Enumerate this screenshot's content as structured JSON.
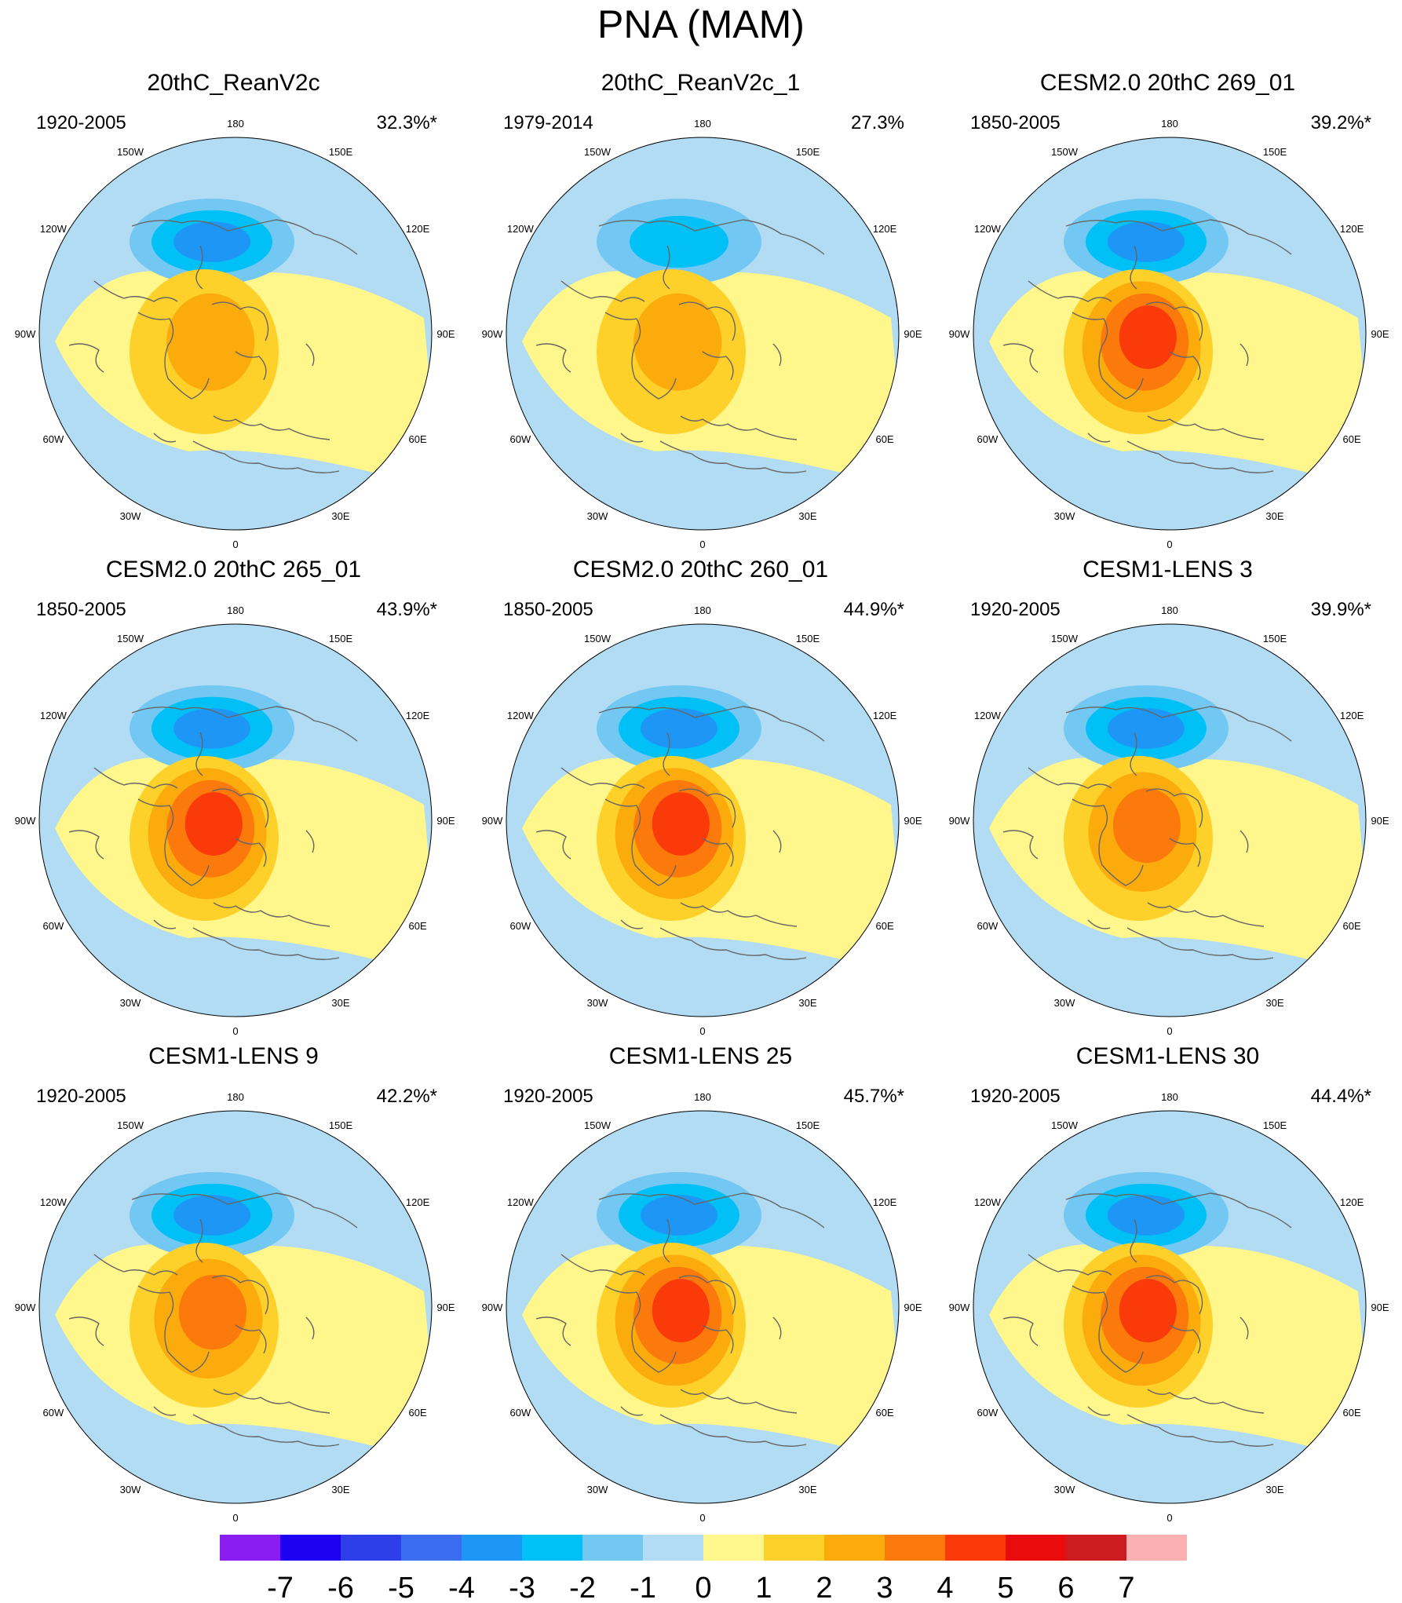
{
  "title": "PNA (MAM)",
  "chart_data": {
    "type": "map-panels",
    "title": "PNA (MAM)",
    "projection": "north-polar-stereographic",
    "lon_labels": [
      "180",
      "150E",
      "120E",
      "90E",
      "60E",
      "30E",
      "0",
      "30W",
      "60W",
      "90W",
      "120W",
      "150W"
    ],
    "panels": [
      {
        "name": "20thC_ReanV2c",
        "period": "1920-2005",
        "variance": "32.3%*",
        "min_level": -4,
        "max_level": 2
      },
      {
        "name": "20thC_ReanV2c_1",
        "period": "1979-2014",
        "variance": "27.3%",
        "min_level": -3,
        "max_level": 2
      },
      {
        "name": "CESM2.0 20thC 269_01",
        "period": "1850-2005",
        "variance": "39.2%*",
        "min_level": -4,
        "max_level": 4
      },
      {
        "name": "CESM2.0 20thC 265_01",
        "period": "1850-2005",
        "variance": "43.9%*",
        "min_level": -4,
        "max_level": 4
      },
      {
        "name": "CESM2.0 20thC 260_01",
        "period": "1850-2005",
        "variance": "44.9%*",
        "min_level": -4,
        "max_level": 4
      },
      {
        "name": "CESM1-LENS 3",
        "period": "1920-2005",
        "variance": "39.9%*",
        "min_level": -4,
        "max_level": 3
      },
      {
        "name": "CESM1-LENS 9",
        "period": "1920-2005",
        "variance": "42.2%*",
        "min_level": -4,
        "max_level": 3
      },
      {
        "name": "CESM1-LENS 25",
        "period": "1920-2005",
        "variance": "45.7%*",
        "min_level": -4,
        "max_level": 4
      },
      {
        "name": "CESM1-LENS 30",
        "period": "1920-2005",
        "variance": "44.4%*",
        "min_level": -4,
        "max_level": 4
      }
    ],
    "colorbar": {
      "labels": [
        "-7",
        "-6",
        "-5",
        "-4",
        "-3",
        "-2",
        "-1",
        "0",
        "1",
        "2",
        "3",
        "4",
        "5",
        "6",
        "7"
      ],
      "colors": [
        "#8a1ef2",
        "#1e00f2",
        "#2e3ee8",
        "#3a6df0",
        "#1e96f5",
        "#00c0f5",
        "#72c8f2",
        "#b1dcf3",
        "#fff68c",
        "#fdd12a",
        "#fcab0c",
        "#fc7a0c",
        "#fb3a0a",
        "#e80c0c",
        "#cc1c20",
        "#fbb1b1"
      ]
    }
  }
}
